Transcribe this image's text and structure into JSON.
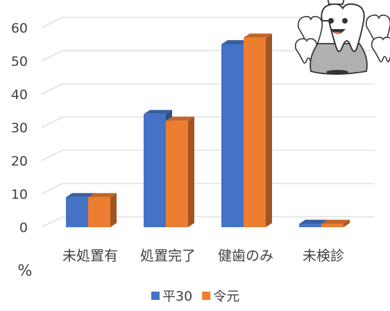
{
  "chart_data": {
    "type": "bar",
    "categories": [
      "未処置有",
      "処置完了",
      "健歯のみ",
      "未検診"
    ],
    "series": [
      {
        "name": "平30",
        "values": [
          9,
          34,
          55,
          1
        ],
        "color": "#4472C4"
      },
      {
        "name": "令元",
        "values": [
          9,
          32,
          57,
          1
        ],
        "color": "#ED7D31"
      }
    ],
    "ylim": [
      0,
      60
    ],
    "yticks": [
      0,
      10,
      20,
      30,
      40,
      50,
      60
    ],
    "ylabel": "%",
    "grid": true,
    "legend": "bottom",
    "three_d": true,
    "decoration": "tooth-king-cartoon-icon"
  }
}
